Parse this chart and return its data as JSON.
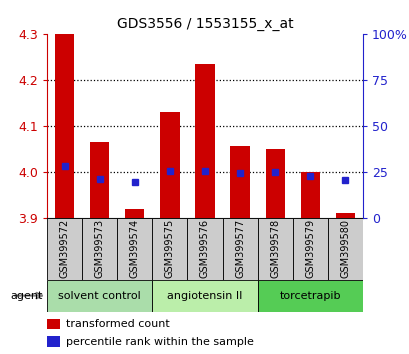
{
  "title": "GDS3556 / 1553155_x_at",
  "samples": [
    "GSM399572",
    "GSM399573",
    "GSM399574",
    "GSM399575",
    "GSM399576",
    "GSM399577",
    "GSM399578",
    "GSM399579",
    "GSM399580"
  ],
  "red_values": [
    4.3,
    4.065,
    3.92,
    4.13,
    4.235,
    4.055,
    4.05,
    4.0,
    3.91
  ],
  "blue_values": [
    4.012,
    3.985,
    3.978,
    4.001,
    4.001,
    3.997,
    3.999,
    3.99,
    3.982
  ],
  "ymin": 3.9,
  "ymax": 4.3,
  "yticks": [
    3.9,
    4.0,
    4.1,
    4.2,
    4.3
  ],
  "right_yticks": [
    0,
    25,
    50,
    75,
    100
  ],
  "right_ytick_labels": [
    "0",
    "25",
    "50",
    "75",
    "100%"
  ],
  "bar_color": "#cc0000",
  "blue_color": "#2222cc",
  "left_tick_color": "#cc0000",
  "right_tick_color": "#2222cc",
  "groups": [
    {
      "label": "solvent control",
      "start": 0,
      "end": 3,
      "color": "#aaddaa"
    },
    {
      "label": "angiotensin II",
      "start": 3,
      "end": 6,
      "color": "#bbeeaa"
    },
    {
      "label": "torcetrapib",
      "start": 6,
      "end": 9,
      "color": "#55cc55"
    }
  ],
  "agent_label": "agent",
  "legend_red": "transformed count",
  "legend_blue": "percentile rank within the sample",
  "bg_color": "#ffffff",
  "sample_box_color": "#cccccc",
  "grid_dotted_vals": [
    4.0,
    4.1,
    4.2
  ]
}
